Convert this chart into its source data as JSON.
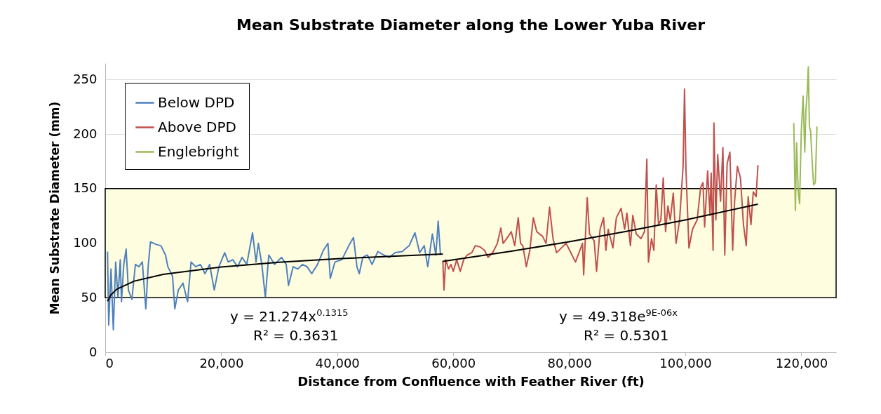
{
  "chart_data": {
    "type": "line",
    "title": "Mean Substrate Diameter along the Lower Yuba River",
    "xlabel": "Distance from Confluence with Feather River (ft)",
    "ylabel": "Mean Substrate Diameter (mm)",
    "xlim": [
      0,
      126000
    ],
    "xticks": [
      {
        "value": 0,
        "label": "0"
      },
      {
        "value": 20000,
        "label": "20,000"
      },
      {
        "value": 40000,
        "label": "40,000"
      },
      {
        "value": 60000,
        "label": "60,000"
      },
      {
        "value": 80000,
        "label": "80,000"
      },
      {
        "value": 100000,
        "label": "100,000"
      },
      {
        "value": 120000,
        "label": "120,000"
      }
    ],
    "ylim": [
      0,
      265
    ],
    "yticks": [
      0,
      50,
      100,
      150,
      200,
      250
    ],
    "grid": "y",
    "legend": "top left",
    "bands": [
      {
        "axis": "y",
        "from": 50,
        "to": 150,
        "color": "#fefde0"
      }
    ],
    "annotations": [
      "y = 21.274x$^{0.1315}$",
      "R² = 0.3631",
      "y = 49.318e$^{9E-06x}$",
      "R² = 0.5301"
    ],
    "series": [
      {
        "name": "Below DPD",
        "color": "#4f81bd",
        "x": [
          400,
          600,
          1000,
          1400,
          1800,
          2200,
          2600,
          2800,
          3200,
          3600,
          4000,
          4600,
          5200,
          5800,
          6400,
          7000,
          7400,
          7800,
          8800,
          9600,
          10400,
          10800,
          11600,
          12000,
          12600,
          13400,
          14200,
          14800,
          15600,
          16400,
          17200,
          18000,
          18800,
          19600,
          20600,
          21200,
          22000,
          22800,
          23600,
          24400,
          25400,
          26000,
          26400,
          27000,
          27600,
          28200,
          29200,
          30400,
          31200,
          31600,
          32400,
          33200,
          34000,
          34800,
          35600,
          36600,
          37600,
          38400,
          38800,
          39600,
          40800,
          41800,
          42000,
          42800,
          43400,
          43800,
          44400,
          45200,
          46000,
          47000,
          48000,
          49000,
          50000,
          51200,
          52400,
          53400,
          54200,
          55000,
          55600,
          56400,
          57000,
          57400,
          57800
        ],
        "values": [
          92.3,
          24.9,
          76.3,
          20.6,
          82.7,
          50.6,
          84.8,
          46.3,
          80.5,
          94.5,
          57.0,
          48.4,
          80.5,
          78.4,
          82.7,
          39.8,
          78.4,
          101.2,
          98.8,
          97.7,
          89.1,
          78.4,
          69.9,
          39.8,
          57.0,
          63.4,
          46.3,
          82.7,
          78.4,
          80.5,
          72.0,
          80.5,
          57.0,
          78.4,
          91.3,
          82.7,
          84.8,
          78.4,
          87.0,
          80.5,
          109.5,
          82.7,
          99.8,
          80.5,
          50.6,
          89.1,
          80.5,
          87.0,
          80.5,
          61.3,
          78.4,
          76.3,
          80.5,
          78.4,
          72.0,
          80.5,
          93.4,
          99.8,
          67.7,
          82.7,
          84.8,
          95.6,
          97.7,
          105.2,
          78.4,
          72.0,
          87.0,
          89.1,
          80.5,
          92.3,
          89.1,
          87.0,
          91.3,
          92.3,
          97.7,
          109.5,
          91.3,
          97.7,
          78.4,
          108.4,
          89.1,
          120.2,
          89.1
        ]
      },
      {
        "name": "Above DPD",
        "color": "#c0504d",
        "x": [
          58200,
          58400,
          58700,
          59200,
          59600,
          60000,
          60600,
          61200,
          61800,
          62400,
          63200,
          63800,
          64600,
          65400,
          66000,
          66800,
          67600,
          68200,
          68600,
          69200,
          70000,
          70600,
          71200,
          71600,
          72000,
          72600,
          73200,
          73800,
          74400,
          75400,
          76000,
          76600,
          77200,
          77800,
          78650,
          79460,
          80260,
          81070,
          82280,
          82480,
          83090,
          83490,
          84300,
          84700,
          85310,
          85910,
          86310,
          86710,
          87520,
          88120,
          88940,
          89540,
          89940,
          90540,
          90950,
          91550,
          92360,
          92960,
          93370,
          93650,
          94180,
          94580,
          94990,
          95390,
          95790,
          96200,
          96600,
          97000,
          97410,
          97930,
          98410,
          99020,
          99620,
          99870,
          100110,
          100630,
          101240,
          102040,
          102650,
          103050,
          103330,
          103850,
          104260,
          104460,
          104790,
          104940,
          105270,
          105590,
          106080,
          106480,
          106800,
          107210,
          107690,
          108170,
          108500,
          108980,
          109510,
          110030,
          110510,
          110840,
          111320,
          111720,
          112210,
          112530
        ],
        "values": [
          83.8,
          57.0,
          84.8,
          76.3,
          80.5,
          74.1,
          84.8,
          74.1,
          84.8,
          89.1,
          91.3,
          97.7,
          96.6,
          93.4,
          87.0,
          91.3,
          99.8,
          113.8,
          99.8,
          104.1,
          110.5,
          97.7,
          123.4,
          99.8,
          97.7,
          78.4,
          93.4,
          123.4,
          110.5,
          106.2,
          99.8,
          133.0,
          104.1,
          91.3,
          95.6,
          99.8,
          91.3,
          82.7,
          99.8,
          70.9,
          141.6,
          108.4,
          102.0,
          74.1,
          112.7,
          123.4,
          93.4,
          112.7,
          95.6,
          123.4,
          131.9,
          112.7,
          127.6,
          97.7,
          125.5,
          108.4,
          104.1,
          110.5,
          177.0,
          82.7,
          104.1,
          93.4,
          153.4,
          117.0,
          121.2,
          159.8,
          110.5,
          134.1,
          121.2,
          145.9,
          99.8,
          121.2,
          170.5,
          241.2,
          168.4,
          95.5,
          112.7,
          121.2,
          151.2,
          155.5,
          114.8,
          166.2,
          125.5,
          164.1,
          93.4,
          210.1,
          121.2,
          181.2,
          138.4,
          187.7,
          89.1,
          172.7,
          183.4,
          93.4,
          138.4,
          170.5,
          159.8,
          117.0,
          97.7,
          142.7,
          117.0,
          147.0,
          142.7,
          171.6
        ]
      },
      {
        "name": "Englebright",
        "color": "#9bbb59",
        "x": [
          118700,
          118780,
          118980,
          119190,
          119470,
          119710,
          120000,
          120310,
          120600,
          120800,
          121000,
          121210,
          121400,
          121610,
          121890,
          122130,
          122420,
          122700
        ],
        "values": [
          210.1,
          187.7,
          129.8,
          192.0,
          147.0,
          136.2,
          202.6,
          234.8,
          183.4,
          221.9,
          236.9,
          261.6,
          206.9,
          202.6,
          172.7,
          153.4,
          155.5,
          206.9
        ]
      },
      {
        "type": "line",
        "color": "#000000",
        "x": [
          400,
          1000,
          2000,
          5000,
          10000,
          20000,
          30000,
          40000,
          58200
        ],
        "values": [
          46.8,
          52.8,
          57.8,
          65.2,
          71.4,
          78.2,
          82.5,
          85.7,
          90.1
        ]
      },
      {
        "type": "line",
        "color": "#000000",
        "x": [
          58200,
          70000,
          80000,
          90000,
          100000,
          112500
        ],
        "values": [
          83.3,
          92.6,
          101.3,
          110.9,
          121.3,
          135.7
        ]
      }
    ]
  }
}
